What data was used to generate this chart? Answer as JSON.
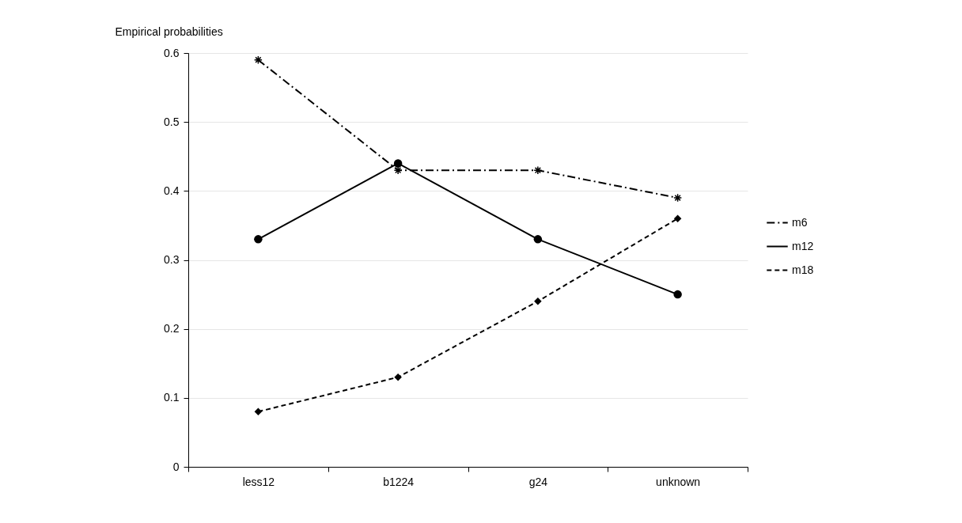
{
  "chart_data": {
    "type": "line",
    "ylabel": "Empirical probabilities",
    "categories": [
      "less12",
      "b1224",
      "g24",
      "unknown"
    ],
    "series": [
      {
        "name": "m6",
        "color": "#000000",
        "marker": "cross",
        "line_style": "dashdot",
        "values": [
          0.59,
          0.43,
          0.43,
          0.39
        ]
      },
      {
        "name": "m12",
        "color": "#000000",
        "marker": "circle",
        "line_style": "solid",
        "values": [
          0.33,
          0.44,
          0.33,
          0.25
        ]
      },
      {
        "name": "m18",
        "color": "#000000",
        "marker": "diamond",
        "line_style": "dashed",
        "values": [
          0.08,
          0.13,
          0.24,
          0.36
        ]
      }
    ],
    "ylim": [
      0,
      0.6
    ],
    "yticks": [
      0,
      0.1,
      0.2,
      0.3,
      0.4,
      0.5,
      0.6
    ],
    "grid": "y",
    "legend": "right"
  }
}
